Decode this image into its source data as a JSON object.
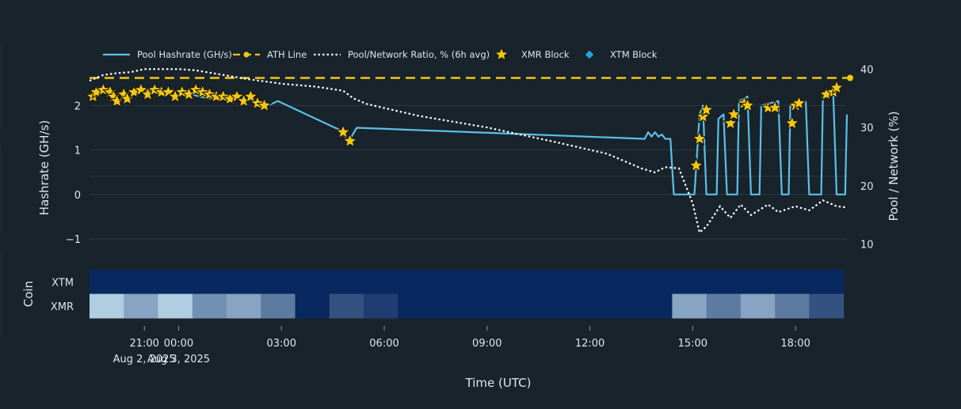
{
  "chart_data": {
    "type": "line",
    "legend": {
      "placement": "top-left",
      "items": [
        {
          "key": "hashrate",
          "label": "Pool Hashrate (GH/s)",
          "color": "#5bc0e8",
          "style": "solid"
        },
        {
          "key": "ath",
          "label": "ATH Line",
          "color": "#f2c811",
          "style": "dashed-marker"
        },
        {
          "key": "ratio",
          "label": "Pool/Network Ratio, % (6h avg)",
          "color": "#ffffff",
          "style": "dotted"
        },
        {
          "key": "xmr",
          "label": "XMR Block",
          "color": "#f2c811",
          "style": "star"
        },
        {
          "key": "xtm",
          "label": "XTM Block",
          "color": "#1ea7e4",
          "style": "diamond"
        }
      ]
    },
    "xaxis": {
      "title": "Time (UTC)",
      "range_hours": [
        -2.6,
        19.5
      ],
      "ticks": [
        {
          "h": -1,
          "label": "21:00",
          "sub": "Aug 2, 2025"
        },
        {
          "h": 0,
          "label": "00:00",
          "sub": "Aug 3, 2025"
        },
        {
          "h": 3,
          "label": "03:00",
          "sub": ""
        },
        {
          "h": 6,
          "label": "06:00",
          "sub": ""
        },
        {
          "h": 9,
          "label": "09:00",
          "sub": ""
        },
        {
          "h": 12,
          "label": "12:00",
          "sub": ""
        },
        {
          "h": 15,
          "label": "15:00",
          "sub": ""
        },
        {
          "h": 18,
          "label": "18:00",
          "sub": ""
        }
      ]
    },
    "y_left": {
      "title": "Hashrate (GH/s)",
      "range": [
        -1.25,
        2.95
      ],
      "ticks": [
        -1,
        0,
        1,
        2
      ]
    },
    "y_right": {
      "title": "Pool / Network (%)",
      "range": [
        9,
        41
      ],
      "ticks": [
        10,
        20,
        30,
        40
      ]
    },
    "ath_value": 2.62,
    "series": [
      {
        "name": "Pool Hashrate (GH/s)",
        "points": [
          [
            -2.6,
            2.15
          ],
          [
            -2.2,
            2.3
          ],
          [
            -1.8,
            2.25
          ],
          [
            -1.4,
            2.3
          ],
          [
            -1,
            2.35
          ],
          [
            -0.6,
            2.3
          ],
          [
            -0.2,
            2.35
          ],
          [
            0.2,
            2.3
          ],
          [
            0.6,
            2.2
          ],
          [
            1,
            2.15
          ],
          [
            1.4,
            2.2
          ],
          [
            1.8,
            2.15
          ],
          [
            2.2,
            2.1
          ],
          [
            2.6,
            2.0
          ],
          [
            2.9,
            2.1
          ],
          [
            4.7,
            1.45
          ],
          [
            4.85,
            1.3
          ],
          [
            5.0,
            1.25
          ],
          [
            5.2,
            1.5
          ],
          [
            13.6,
            1.25
          ],
          [
            13.7,
            1.4
          ],
          [
            13.8,
            1.3
          ],
          [
            13.9,
            1.4
          ],
          [
            14.0,
            1.3
          ],
          [
            14.1,
            1.35
          ],
          [
            14.2,
            1.25
          ],
          [
            14.35,
            1.25
          ],
          [
            14.45,
            0
          ],
          [
            15.05,
            0
          ],
          [
            15.1,
            0.6
          ],
          [
            15.2,
            1.8
          ],
          [
            15.3,
            2.0
          ],
          [
            15.4,
            0
          ],
          [
            15.7,
            0
          ],
          [
            15.75,
            1.7
          ],
          [
            15.9,
            1.8
          ],
          [
            16.0,
            0
          ],
          [
            16.3,
            0
          ],
          [
            16.35,
            2.1
          ],
          [
            16.6,
            2.2
          ],
          [
            16.7,
            0
          ],
          [
            16.95,
            0
          ],
          [
            17.0,
            2.0
          ],
          [
            17.5,
            2.1
          ],
          [
            17.6,
            0
          ],
          [
            17.8,
            0
          ],
          [
            17.85,
            2.0
          ],
          [
            18.3,
            2.1
          ],
          [
            18.4,
            0
          ],
          [
            18.75,
            0
          ],
          [
            18.8,
            2.2
          ],
          [
            19.1,
            2.3
          ],
          [
            19.2,
            0
          ],
          [
            19.45,
            0
          ],
          [
            19.5,
            1.8
          ]
        ]
      },
      {
        "name": "Pool/Network Ratio, % (6h avg)",
        "axis": "right",
        "points": [
          [
            -2.6,
            38
          ],
          [
            -2.2,
            39
          ],
          [
            -1.8,
            39.3
          ],
          [
            -1.4,
            39.5
          ],
          [
            -1,
            40
          ],
          [
            0,
            40
          ],
          [
            0.5,
            39.8
          ],
          [
            1,
            39.3
          ],
          [
            2,
            38.3
          ],
          [
            3,
            37.5
          ],
          [
            4,
            37
          ],
          [
            4.8,
            36.3
          ],
          [
            5.1,
            35
          ],
          [
            5.5,
            34
          ],
          [
            7,
            32
          ],
          [
            9,
            30
          ],
          [
            11,
            27.5
          ],
          [
            12.5,
            25.5
          ],
          [
            13.5,
            23
          ],
          [
            13.9,
            22.3
          ],
          [
            14.2,
            23.2
          ],
          [
            14.6,
            23
          ],
          [
            15.0,
            17
          ],
          [
            15.2,
            12
          ],
          [
            15.4,
            13
          ],
          [
            15.8,
            16.5
          ],
          [
            16.1,
            14.5
          ],
          [
            16.4,
            16.8
          ],
          [
            16.7,
            15
          ],
          [
            17.2,
            16.8
          ],
          [
            17.5,
            15.5
          ],
          [
            18.0,
            16.5
          ],
          [
            18.4,
            15.8
          ],
          [
            18.8,
            17.5
          ],
          [
            19.2,
            16.5
          ],
          [
            19.5,
            16.3
          ]
        ]
      }
    ],
    "xmr_blocks": [
      [
        -2.5,
        2.2
      ],
      [
        -2.4,
        2.3
      ],
      [
        -2.2,
        2.35
      ],
      [
        -2.0,
        2.3
      ],
      [
        -1.9,
        2.2
      ],
      [
        -1.8,
        2.1
      ],
      [
        -1.6,
        2.25
      ],
      [
        -1.5,
        2.15
      ],
      [
        -1.3,
        2.3
      ],
      [
        -1.1,
        2.35
      ],
      [
        -0.9,
        2.25
      ],
      [
        -0.7,
        2.35
      ],
      [
        -0.5,
        2.3
      ],
      [
        -0.3,
        2.3
      ],
      [
        -0.1,
        2.2
      ],
      [
        0.1,
        2.3
      ],
      [
        0.3,
        2.25
      ],
      [
        0.5,
        2.35
      ],
      [
        0.7,
        2.3
      ],
      [
        0.9,
        2.25
      ],
      [
        1.1,
        2.2
      ],
      [
        1.3,
        2.2
      ],
      [
        1.5,
        2.15
      ],
      [
        1.7,
        2.2
      ],
      [
        1.9,
        2.1
      ],
      [
        2.1,
        2.2
      ],
      [
        2.3,
        2.05
      ],
      [
        2.5,
        2.0
      ],
      [
        4.8,
        1.4
      ],
      [
        5.0,
        1.2
      ],
      [
        15.1,
        0.65
      ],
      [
        15.2,
        1.25
      ],
      [
        15.3,
        1.75
      ],
      [
        15.4,
        1.9
      ],
      [
        16.1,
        1.6
      ],
      [
        16.2,
        1.8
      ],
      [
        16.5,
        2.05
      ],
      [
        16.6,
        2.0
      ],
      [
        17.2,
        1.95
      ],
      [
        17.4,
        1.95
      ],
      [
        17.9,
        1.6
      ],
      [
        18.0,
        2.0
      ],
      [
        18.1,
        2.05
      ],
      [
        18.9,
        2.25
      ],
      [
        19.1,
        2.3
      ],
      [
        19.2,
        2.4
      ]
    ],
    "xtm_blocks": [],
    "heatmap": {
      "ylabel": "Coin",
      "rows": [
        "XTM",
        "XMR"
      ],
      "bin_start_hours": [
        -2.6,
        -1.6,
        -0.6,
        0.4,
        1.4,
        2.4,
        3.4,
        4.4,
        5.4,
        6.4,
        7.4,
        8.4,
        9.4,
        10.4,
        11.4,
        12.4,
        13.4,
        14.4,
        15.4,
        16.4,
        17.4,
        18.4
      ],
      "bin_hours": 1.0,
      "values": {
        "XTM": [
          0,
          0,
          0,
          0,
          0,
          0,
          0,
          0,
          0,
          0,
          0,
          0,
          0,
          0,
          0,
          0,
          0,
          0,
          0,
          0,
          0,
          0
        ],
        "XMR": [
          8,
          6,
          8,
          5,
          6,
          4,
          0,
          2,
          1,
          0,
          0,
          0,
          0,
          0,
          0,
          0,
          0,
          6,
          4,
          6,
          4,
          2
        ]
      },
      "max": 8
    }
  }
}
